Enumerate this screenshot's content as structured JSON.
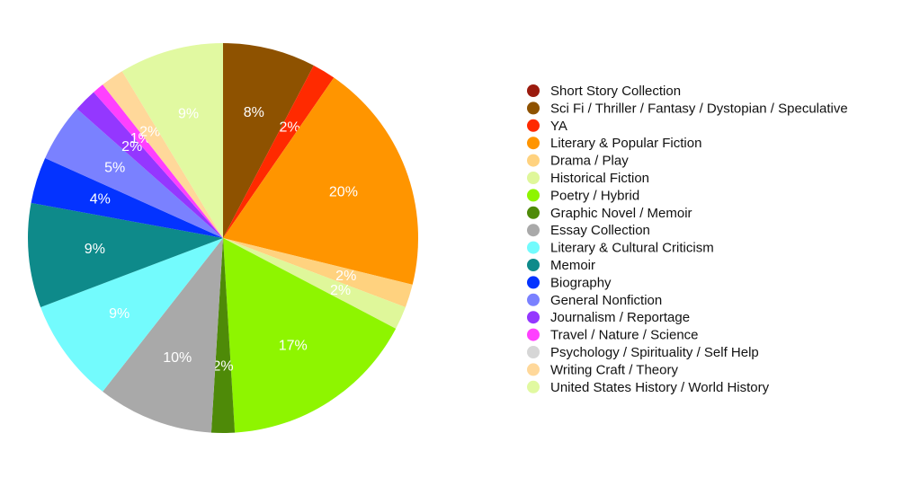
{
  "chart_data": {
    "type": "pie",
    "categories": [
      "Short Story Collection",
      "Sci Fi / Thriller / Fantasy / Dystopian / Speculative",
      "YA",
      "Literary & Popular Fiction",
      "Drama / Play",
      "Historical Fiction",
      "Poetry / Hybrid",
      "Graphic Novel / Memoir",
      "Essay Collection",
      "Literary & Cultural Criticism",
      "Memoir",
      "Biography",
      "General Nonfiction",
      "Journalism / Reportage",
      "Travel / Nature / Science",
      "Psychology / Spirituality / Self Help",
      "Writing Craft / Theory",
      "United States History / World History"
    ],
    "values": [
      0,
      8,
      2,
      20,
      2,
      2,
      17,
      2,
      10,
      9,
      9,
      4,
      5,
      2,
      1,
      0,
      2,
      9
    ],
    "value_labels": [
      null,
      "8%",
      "2%",
      "20%",
      "2%",
      "2%",
      "17%",
      "2%",
      "10%",
      "9%",
      "9%",
      "4%",
      "5%",
      "2%",
      "1%",
      null,
      "2%",
      "9%"
    ],
    "colors": [
      "#9b1b0e",
      "#8e5200",
      "#ff2a00",
      "#ff9500",
      "#ffd27f",
      "#dff79a",
      "#8ef500",
      "#4e8a08",
      "#a9a9a9",
      "#73fbfd",
      "#0e8a8a",
      "#0433ff",
      "#7a81ff",
      "#9437ff",
      "#ff40ff",
      "#d6d6d6",
      "#ffd89a",
      "#e1f9a1"
    ]
  }
}
